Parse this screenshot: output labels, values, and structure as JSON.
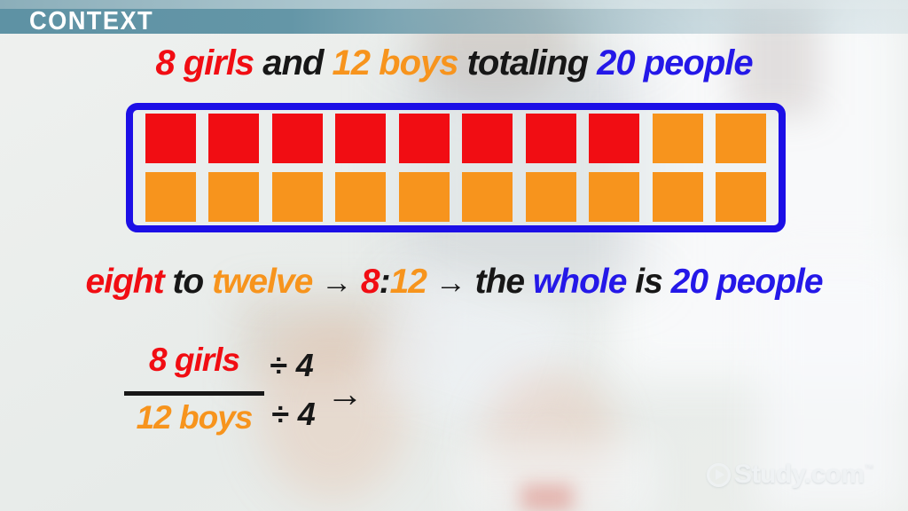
{
  "banner": {
    "label": "CONTEXT"
  },
  "title": {
    "segments": [
      {
        "text": "8 girls",
        "color": "red"
      },
      {
        "text": " and ",
        "color": "black"
      },
      {
        "text": "12 boys",
        "color": "orange"
      },
      {
        "text": " totaling ",
        "color": "black"
      },
      {
        "text": "20 people",
        "color": "blue"
      }
    ]
  },
  "grid": {
    "rows": [
      [
        "red",
        "red",
        "red",
        "red",
        "red",
        "red",
        "red",
        "red",
        "orange",
        "orange"
      ],
      [
        "orange",
        "orange",
        "orange",
        "orange",
        "orange",
        "orange",
        "orange",
        "orange",
        "orange",
        "orange"
      ]
    ],
    "red_count": 8,
    "orange_count": 12,
    "total_count": 20
  },
  "ratio_line": {
    "segments": [
      {
        "text": "eight",
        "color": "red"
      },
      {
        "text": " to ",
        "color": "black"
      },
      {
        "text": "twelve",
        "color": "orange"
      },
      {
        "text": " → ",
        "color": "black",
        "arrow": true
      },
      {
        "text": "8",
        "color": "red"
      },
      {
        "text": ":",
        "color": "black"
      },
      {
        "text": "12",
        "color": "orange"
      },
      {
        "text": " → ",
        "color": "black",
        "arrow": true
      },
      {
        "text": "the ",
        "color": "black"
      },
      {
        "text": "whole",
        "color": "blue"
      },
      {
        "text": " is ",
        "color": "black"
      },
      {
        "text": "20 people",
        "color": "blue"
      }
    ]
  },
  "fraction": {
    "numerator": "8 girls",
    "denominator": "12 boys",
    "divide_top": "÷ 4",
    "divide_bottom": "÷ 4",
    "arrow": "→"
  },
  "logo": {
    "text": "Study.com",
    "mark": "™"
  },
  "palette": {
    "red": "#f10d13",
    "orange": "#f7941d",
    "blue": "#2418e8",
    "black": "#171717",
    "teal": "#6095a6",
    "borderblue": "#1c0fe6"
  }
}
